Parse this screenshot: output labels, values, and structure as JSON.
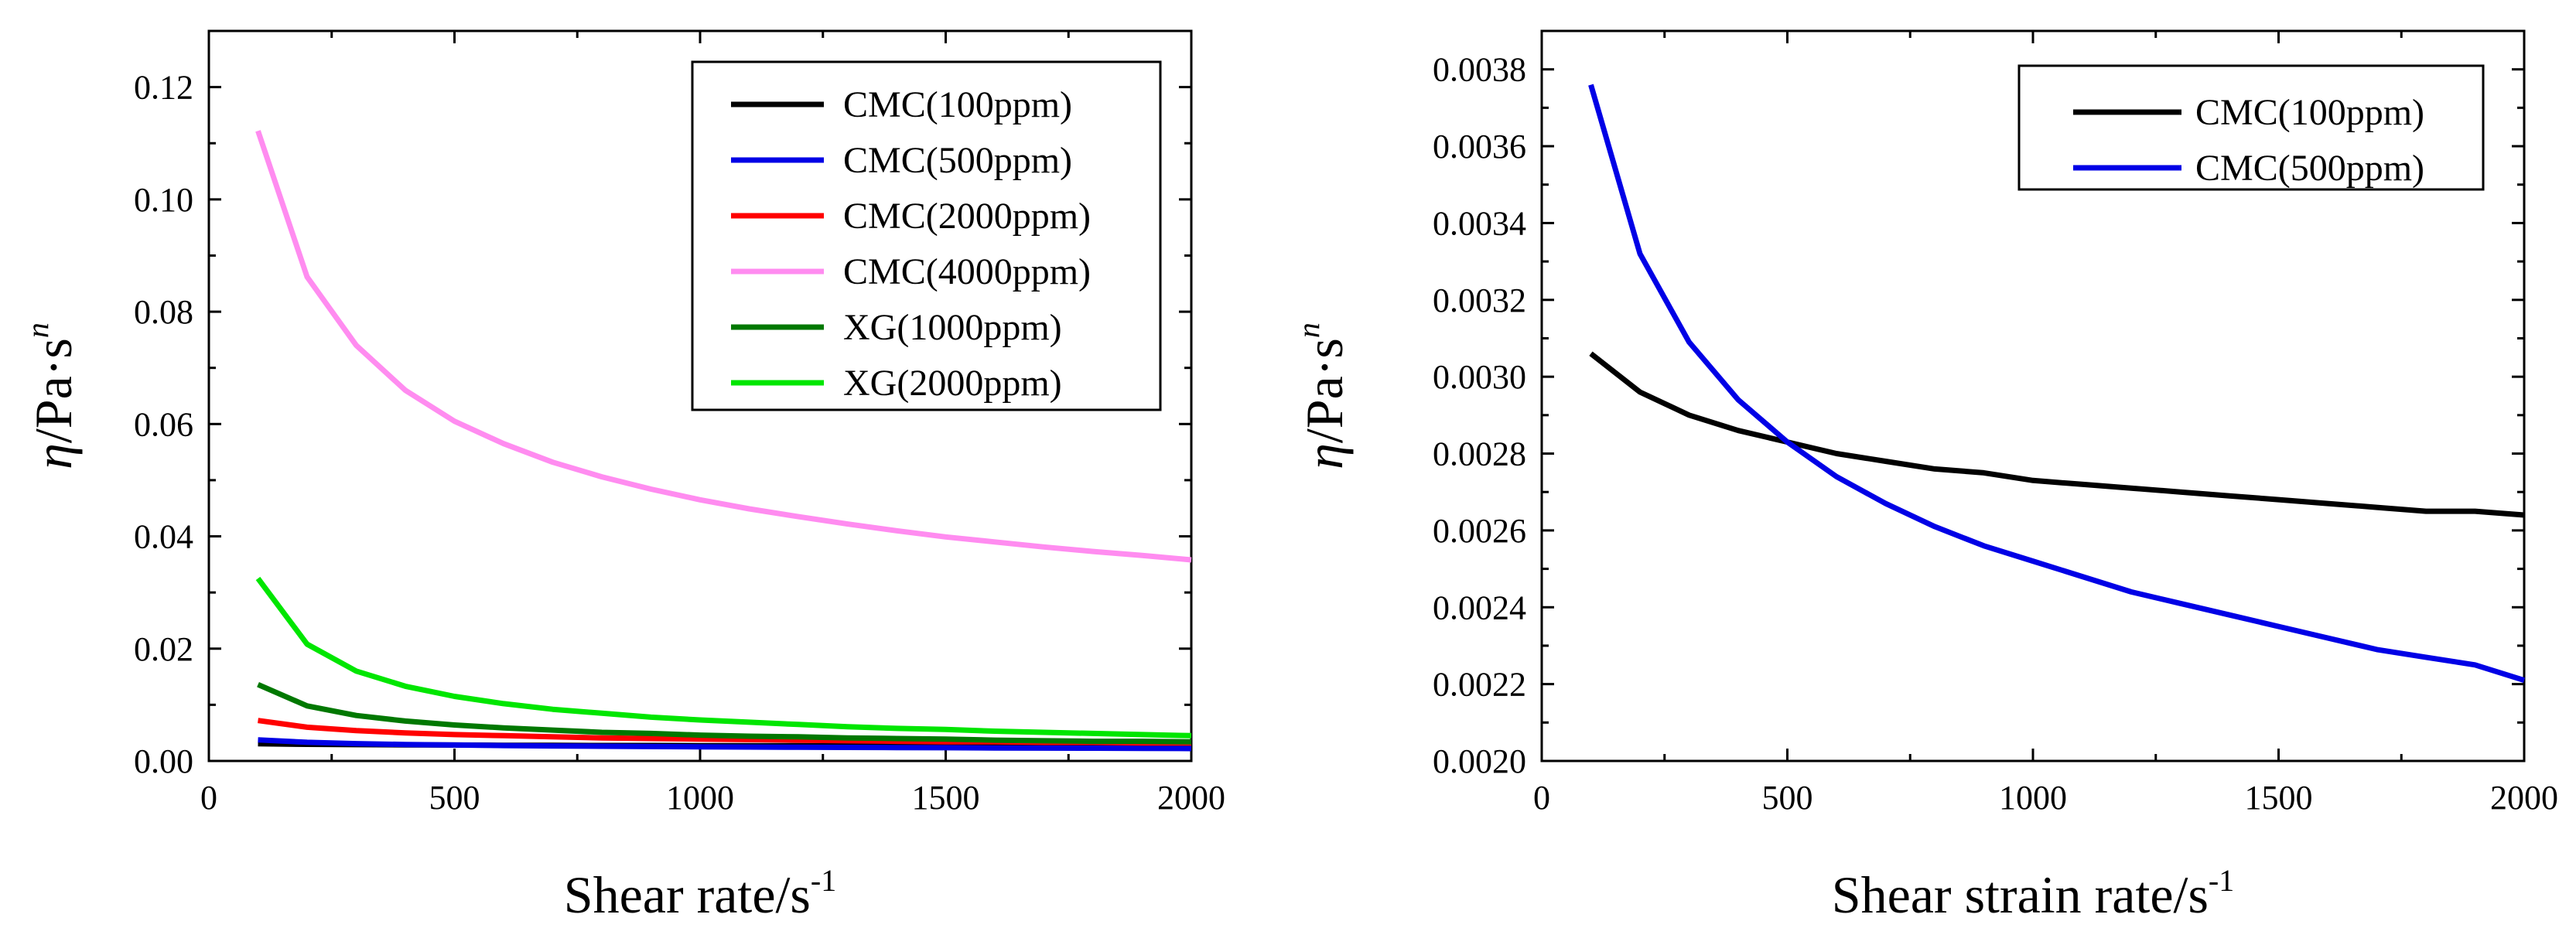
{
  "chart_data": [
    {
      "type": "line",
      "title": "",
      "xlabel": "Shear rate/s",
      "xlabel_sup": "-1",
      "ylabel_symbol": "η",
      "ylabel": "/Pa·s",
      "ylabel_sup": "n",
      "xlim": [
        0,
        2000
      ],
      "ylim": [
        0,
        0.13
      ],
      "xticks": [
        0,
        500,
        1000,
        1500,
        2000
      ],
      "xtick_labels": [
        "0",
        "500",
        "1000",
        "1500",
        "2000"
      ],
      "yticks": [
        0,
        0.02,
        0.04,
        0.06,
        0.08,
        0.1,
        0.12
      ],
      "ytick_labels": [
        "0.00",
        "0.02",
        "0.04",
        "0.06",
        "0.08",
        "0.10",
        "0.12"
      ],
      "grid": false,
      "legend_position": "top-right",
      "x": [
        100,
        200,
        300,
        400,
        500,
        600,
        700,
        800,
        900,
        1000,
        1100,
        1200,
        1300,
        1400,
        1500,
        1600,
        1700,
        1800,
        1900,
        2000
      ],
      "series": [
        {
          "name": "CMC(100ppm)",
          "color": "#000000",
          "values": [
            0.00306,
            0.00296,
            0.0029,
            0.00286,
            0.00283,
            0.0028,
            0.00278,
            0.00276,
            0.00275,
            0.00273,
            0.00272,
            0.00271,
            0.0027,
            0.00269,
            0.00268,
            0.00267,
            0.00266,
            0.00265,
            0.00265,
            0.00264
          ]
        },
        {
          "name": "CMC(500ppm)",
          "color": "#0000e6",
          "values": [
            0.00376,
            0.00332,
            0.00309,
            0.00294,
            0.00283,
            0.00274,
            0.00267,
            0.00261,
            0.00256,
            0.00252,
            0.00248,
            0.00244,
            0.00241,
            0.00238,
            0.00235,
            0.00232,
            0.00229,
            0.00227,
            0.00225,
            0.00221
          ]
        },
        {
          "name": "CMC(2000ppm)",
          "color": "#ff0000",
          "values": [
            0.0072,
            0.006,
            0.0054,
            0.005,
            0.0047,
            0.0045,
            0.0043,
            0.0041,
            0.004,
            0.0039,
            0.0038,
            0.0037,
            0.0036,
            0.0035,
            0.0034,
            0.0034,
            0.0033,
            0.0033,
            0.0032,
            0.0032
          ]
        },
        {
          "name": "CMC(4000ppm)",
          "color": "#ff8cf0",
          "values": [
            0.1122,
            0.0862,
            0.074,
            0.066,
            0.0605,
            0.0565,
            0.0532,
            0.0506,
            0.0484,
            0.0465,
            0.0449,
            0.0435,
            0.0422,
            0.041,
            0.0399,
            0.039,
            0.0381,
            0.0373,
            0.0366,
            0.0358
          ]
        },
        {
          "name": "XG(1000ppm)",
          "color": "#007800",
          "values": [
            0.0136,
            0.0098,
            0.0081,
            0.0071,
            0.0064,
            0.0059,
            0.0055,
            0.0051,
            0.0049,
            0.0046,
            0.0044,
            0.0043,
            0.0041,
            0.004,
            0.0039,
            0.0037,
            0.0036,
            0.0035,
            0.0035,
            0.0034
          ]
        },
        {
          "name": "XG(2000ppm)",
          "color": "#00e600",
          "values": [
            0.0325,
            0.0208,
            0.016,
            0.0133,
            0.0115,
            0.0102,
            0.0092,
            0.0085,
            0.0078,
            0.0073,
            0.0069,
            0.0065,
            0.0061,
            0.0058,
            0.0056,
            0.0053,
            0.0051,
            0.0049,
            0.0047,
            0.0045
          ]
        }
      ]
    },
    {
      "type": "line",
      "title": "",
      "xlabel": "Shear strain rate/s",
      "xlabel_sup": "-1",
      "ylabel_symbol": "η",
      "ylabel": "/Pa·s",
      "ylabel_sup": "n",
      "xlim": [
        0,
        2000
      ],
      "ylim": [
        0.002,
        0.0039
      ],
      "xticks": [
        0,
        500,
        1000,
        1500,
        2000
      ],
      "xtick_labels": [
        "0",
        "500",
        "1000",
        "1500",
        "2000"
      ],
      "yticks": [
        0.002,
        0.0022,
        0.0024,
        0.0026,
        0.0028,
        0.003,
        0.0032,
        0.0034,
        0.0036,
        0.0038
      ],
      "ytick_labels": [
        "0.0020",
        "0.0022",
        "0.0024",
        "0.0026",
        "0.0028",
        "0.0030",
        "0.0032",
        "0.0034",
        "0.0036",
        "0.0038"
      ],
      "grid": false,
      "legend_position": "top-right",
      "x": [
        100,
        200,
        300,
        400,
        500,
        600,
        700,
        800,
        900,
        1000,
        1100,
        1200,
        1300,
        1400,
        1500,
        1600,
        1700,
        1800,
        1900,
        2000
      ],
      "series": [
        {
          "name": "CMC(100ppm)",
          "color": "#000000",
          "values": [
            0.00306,
            0.00296,
            0.0029,
            0.00286,
            0.00283,
            0.0028,
            0.00278,
            0.00276,
            0.00275,
            0.00273,
            0.00272,
            0.00271,
            0.0027,
            0.00269,
            0.00268,
            0.00267,
            0.00266,
            0.00265,
            0.00265,
            0.00264
          ]
        },
        {
          "name": "CMC(500ppm)",
          "color": "#0000e6",
          "values": [
            0.00376,
            0.00332,
            0.00309,
            0.00294,
            0.00283,
            0.00274,
            0.00267,
            0.00261,
            0.00256,
            0.00252,
            0.00248,
            0.00244,
            0.00241,
            0.00238,
            0.00235,
            0.00232,
            0.00229,
            0.00227,
            0.00225,
            0.00221
          ]
        }
      ]
    }
  ]
}
